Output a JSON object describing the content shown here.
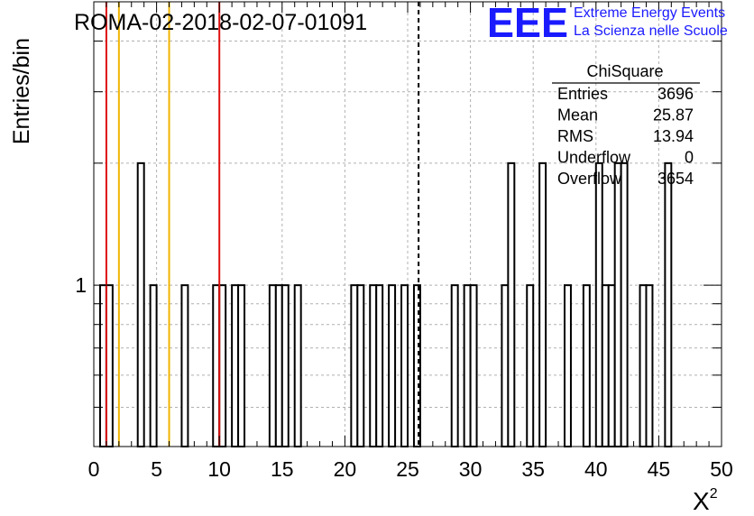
{
  "chart_data": {
    "type": "bar",
    "title": "ROMA-02-2018-02-07-01091",
    "xlabel": "X",
    "xlabel_sup": "2",
    "ylabel": "Entries/bin",
    "xlim": [
      0,
      50
    ],
    "ylim": [
      0.4,
      5
    ],
    "y_scale": "log",
    "grid": true,
    "x_ticks": [
      "0",
      "5",
      "10",
      "15",
      "20",
      "25",
      "30",
      "35",
      "40",
      "45",
      "50"
    ],
    "y_tick_labels": [
      {
        "value": 1,
        "label": "1"
      }
    ],
    "bin_width": 0.5,
    "bins": [
      {
        "x": 0.5,
        "count": 1
      },
      {
        "x": 1.0,
        "count": 1
      },
      {
        "x": 3.5,
        "count": 2
      },
      {
        "x": 4.5,
        "count": 1
      },
      {
        "x": 7.0,
        "count": 1
      },
      {
        "x": 9.5,
        "count": 1
      },
      {
        "x": 10.0,
        "count": 1
      },
      {
        "x": 11.0,
        "count": 1
      },
      {
        "x": 11.5,
        "count": 1
      },
      {
        "x": 14.0,
        "count": 1
      },
      {
        "x": 14.5,
        "count": 1
      },
      {
        "x": 15.0,
        "count": 1
      },
      {
        "x": 16.0,
        "count": 1
      },
      {
        "x": 20.5,
        "count": 1
      },
      {
        "x": 21.0,
        "count": 1
      },
      {
        "x": 22.0,
        "count": 1
      },
      {
        "x": 22.5,
        "count": 1
      },
      {
        "x": 23.5,
        "count": 1
      },
      {
        "x": 24.5,
        "count": 1
      },
      {
        "x": 25.5,
        "count": 1
      },
      {
        "x": 28.5,
        "count": 1
      },
      {
        "x": 29.5,
        "count": 1
      },
      {
        "x": 30.0,
        "count": 1
      },
      {
        "x": 32.5,
        "count": 1
      },
      {
        "x": 33.0,
        "count": 2
      },
      {
        "x": 34.5,
        "count": 1
      },
      {
        "x": 35.5,
        "count": 2
      },
      {
        "x": 37.5,
        "count": 1
      },
      {
        "x": 39.0,
        "count": 1
      },
      {
        "x": 40.0,
        "count": 2
      },
      {
        "x": 40.5,
        "count": 1
      },
      {
        "x": 41.0,
        "count": 1
      },
      {
        "x": 41.5,
        "count": 2
      },
      {
        "x": 42.0,
        "count": 2
      },
      {
        "x": 43.5,
        "count": 1
      },
      {
        "x": 44.0,
        "count": 1
      },
      {
        "x": 45.5,
        "count": 2
      }
    ],
    "reference_lines": [
      {
        "x": 1.0,
        "color": "#dd1111",
        "style": "solid"
      },
      {
        "x": 2.0,
        "color": "#f0b400",
        "style": "solid"
      },
      {
        "x": 6.0,
        "color": "#f0b400",
        "style": "solid"
      },
      {
        "x": 10.0,
        "color": "#dd1111",
        "style": "solid"
      },
      {
        "x": 25.87,
        "color": "#000000",
        "style": "dashed"
      }
    ],
    "stats_box": {
      "title": "ChiSquare",
      "rows": [
        {
          "label": "Entries",
          "value": "3696"
        },
        {
          "label": "Mean",
          "value": "25.87"
        },
        {
          "label": "RMS",
          "value": "13.94"
        },
        {
          "label": "Underflow",
          "value": "0"
        },
        {
          "label": "Overflow",
          "value": "3654"
        }
      ]
    },
    "logo": {
      "mark": "EEE",
      "line1": "Extreme Energy Events",
      "line2": "La Scienza nelle Scuole",
      "color": "#1a1aff"
    }
  }
}
